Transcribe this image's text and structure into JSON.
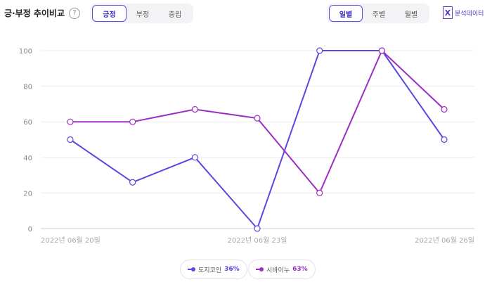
{
  "header": {
    "title": "긍·부정 추이비교",
    "help": "?",
    "sentiment_tabs": [
      "긍정",
      "부정",
      "중립"
    ],
    "period_tabs": [
      "일별",
      "주별",
      "월별"
    ],
    "export_label": "분석데이터",
    "export_icon": "excel-icon"
  },
  "chart_data": {
    "type": "line",
    "x": [
      "2022-06-20",
      "2022-06-21",
      "2022-06-22",
      "2022-06-23",
      "2022-06-24",
      "2022-06-25",
      "2022-06-26"
    ],
    "xtick_labels": [
      "2022년 06월 20일",
      "2022년 06월 23일",
      "2022년 06월 26일"
    ],
    "yticks": [
      "0",
      "20",
      "40",
      "60",
      "80",
      "100"
    ],
    "ylim": [
      0,
      100
    ],
    "grid": true,
    "legend_position": "bottom-center",
    "series": [
      {
        "name": "도지코인",
        "pct": "36%",
        "color": "#5b48e0",
        "values": [
          50,
          26,
          40,
          0,
          100,
          100,
          50
        ]
      },
      {
        "name": "시바이누",
        "pct": "63%",
        "color": "#9b2fc4",
        "values": [
          60,
          60,
          67,
          62,
          20,
          100,
          67
        ]
      }
    ]
  }
}
